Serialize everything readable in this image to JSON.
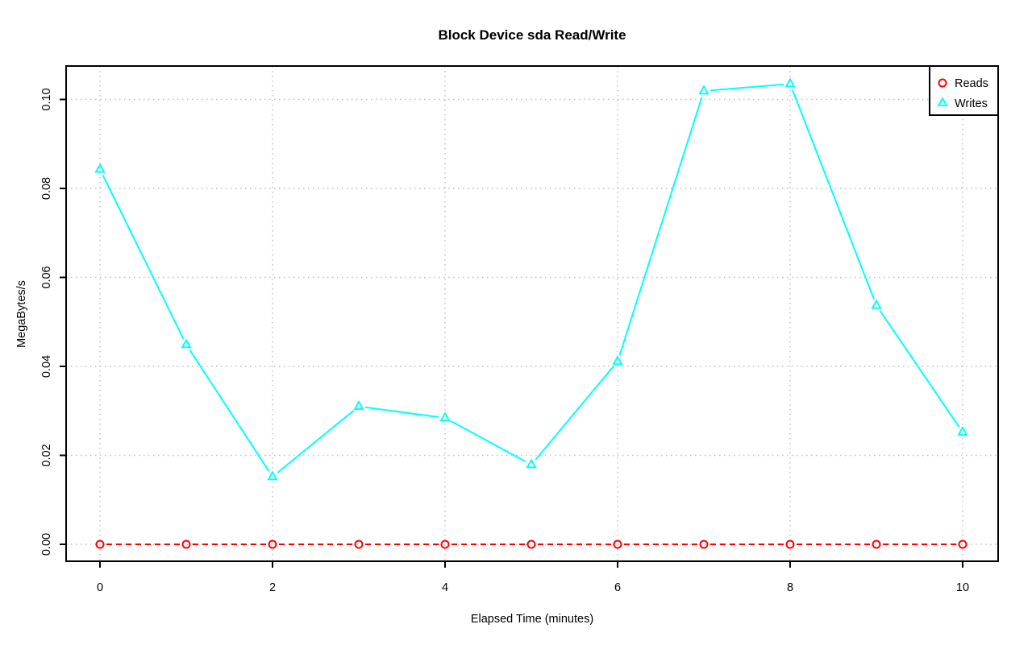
{
  "chart_data": {
    "type": "line",
    "title": "Block Device sda Read/Write",
    "xlabel": "Elapsed Time (minutes)",
    "ylabel": "MegaBytes/s",
    "x": [
      0,
      1,
      2,
      3,
      4,
      5,
      6,
      7,
      8,
      9,
      10
    ],
    "x_tick_values": [
      0,
      2,
      4,
      6,
      8,
      10
    ],
    "x_tick_labels": [
      "0",
      "2",
      "4",
      "6",
      "8",
      "10"
    ],
    "y_tick_values": [
      0.0,
      0.02,
      0.04,
      0.06,
      0.08,
      0.1
    ],
    "y_tick_labels": [
      "0.00",
      "0.02",
      "0.04",
      "0.06",
      "0.08",
      "0.10"
    ],
    "xlim": [
      0,
      10
    ],
    "ylim": [
      0,
      0.104
    ],
    "grid": true,
    "grid_color": "#bebebe",
    "axis_color": "#000000",
    "background_color": "#ffffff",
    "legend_position": "top-right",
    "series": [
      {
        "name": "Reads",
        "color": "#ff0000",
        "marker": "circle",
        "line_style": "dashed",
        "values": [
          0,
          0,
          0,
          0,
          0,
          0,
          0,
          0,
          0,
          0,
          0
        ]
      },
      {
        "name": "Writes",
        "color": "#00ffff",
        "marker": "triangle",
        "line_style": "solid",
        "values": [
          0.0843,
          0.0449,
          0.0152,
          0.031,
          0.0284,
          0.0179,
          0.0411,
          0.1019,
          0.1035,
          0.0537,
          0.0252
        ]
      }
    ]
  }
}
